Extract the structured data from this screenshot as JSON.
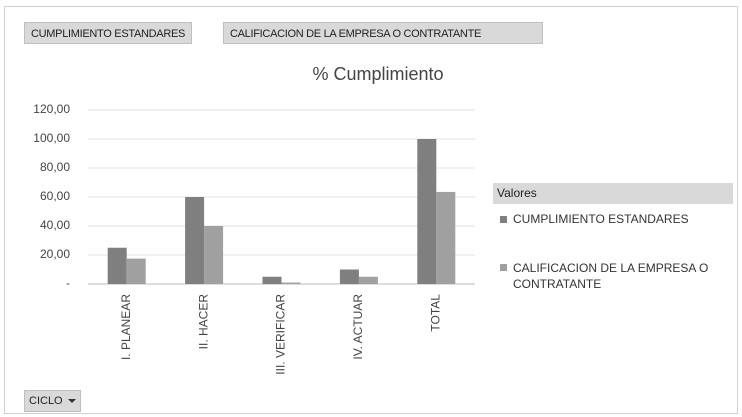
{
  "chart_data": {
    "type": "bar",
    "title": "% Cumplimiento",
    "categories": [
      "I. PLANEAR",
      "II. HACER",
      "III. VERIFICAR",
      "IV. ACTUAR",
      "TOTAL"
    ],
    "series": [
      {
        "name": "CUMPLIMIENTO ESTANDARES",
        "color": "#7f7f7f",
        "values": [
          25,
          60,
          5,
          10,
          100
        ]
      },
      {
        "name": "CALIFICACION DE LA EMPRESA O CONTRATANTE",
        "color": "#a0a0a0",
        "values": [
          17.5,
          40,
          1,
          5,
          63.5
        ]
      }
    ],
    "ylim": [
      0,
      120
    ],
    "yticks": [
      {
        "value": 0,
        "label": "-"
      },
      {
        "value": 20,
        "label": "20,00"
      },
      {
        "value": 40,
        "label": "40,00"
      },
      {
        "value": 60,
        "label": "60,00"
      },
      {
        "value": 80,
        "label": "80,00"
      },
      {
        "value": 100,
        "label": "100,00"
      },
      {
        "value": 120,
        "label": "120,00"
      }
    ],
    "grid": true,
    "legend_title": "Valores",
    "axis_field": "CICLO"
  }
}
